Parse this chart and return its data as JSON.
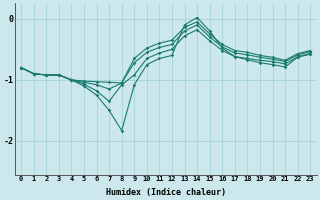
{
  "xlabel": "Humidex (Indice chaleur)",
  "bg_color": "#cce8ec",
  "line_color": "#1a7a6e",
  "grid_color": "#9ecfd5",
  "xlim": [
    -0.5,
    23.5
  ],
  "ylim": [
    -2.55,
    0.25
  ],
  "yticks": [
    0,
    -1,
    -2
  ],
  "xticks": [
    0,
    1,
    2,
    3,
    4,
    5,
    6,
    7,
    8,
    9,
    10,
    11,
    12,
    13,
    14,
    15,
    16,
    17,
    18,
    19,
    20,
    21,
    22,
    23
  ],
  "lines": [
    [
      -0.8,
      -0.9,
      -0.92,
      -0.92,
      -1.0,
      -1.02,
      -1.03,
      -1.04,
      -1.05,
      -0.65,
      -0.48,
      -0.4,
      -0.35,
      -0.14,
      -0.05,
      -0.25,
      -0.42,
      -0.52,
      -0.55,
      -0.6,
      -0.63,
      -0.68,
      -0.57,
      -0.52
    ],
    [
      -0.8,
      -0.9,
      -0.92,
      -0.92,
      -1.0,
      -1.04,
      -1.08,
      -1.15,
      -1.05,
      -0.72,
      -0.55,
      -0.47,
      -0.42,
      -0.2,
      -0.1,
      -0.3,
      -0.46,
      -0.56,
      -0.59,
      -0.63,
      -0.66,
      -0.7,
      -0.59,
      -0.54
    ],
    [
      -0.8,
      -0.9,
      -0.92,
      -0.92,
      -1.0,
      -1.07,
      -1.18,
      -1.35,
      -1.08,
      -0.92,
      -0.65,
      -0.56,
      -0.5,
      -0.28,
      -0.18,
      -0.36,
      -0.52,
      -0.62,
      -0.65,
      -0.68,
      -0.7,
      -0.74,
      -0.62,
      -0.57
    ],
    [
      -0.8,
      -0.9,
      -0.92,
      -0.92,
      -1.0,
      -1.1,
      -1.25,
      -1.5,
      -1.83,
      -1.08,
      -0.75,
      -0.65,
      -0.6,
      -0.1,
      0.02,
      -0.2,
      -0.48,
      -0.62,
      -0.67,
      -0.72,
      -0.75,
      -0.79,
      -0.63,
      -0.58
    ]
  ]
}
